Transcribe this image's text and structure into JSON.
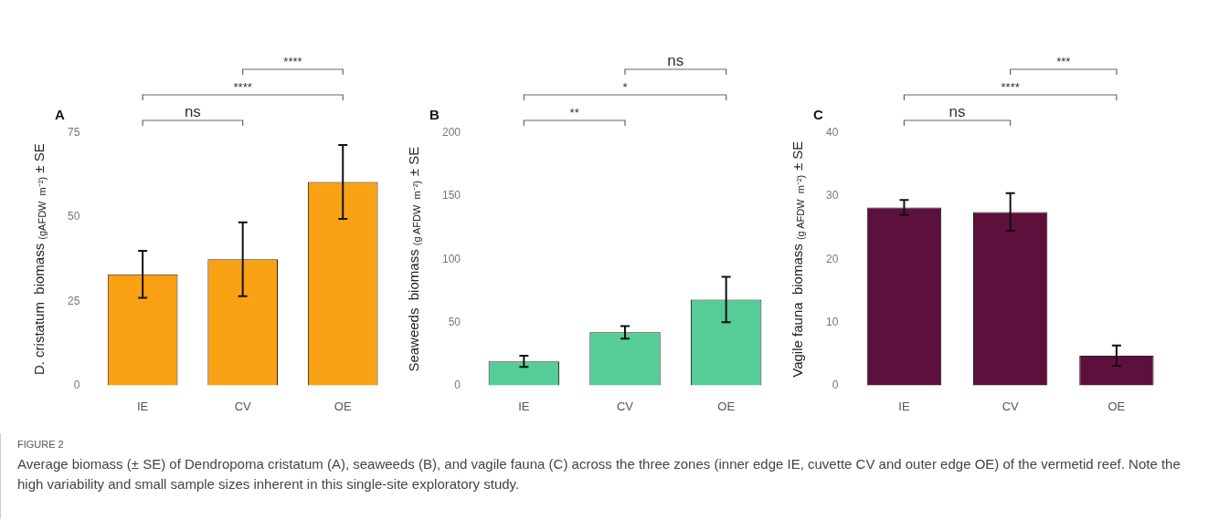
{
  "chart_data": [
    {
      "type": "bar",
      "title": "A",
      "ylabel": "D. cristatum  biomass $_{(gAFDW  m⁻²)}$ ± SE",
      "categories": [
        "IE",
        "CV",
        "OE"
      ],
      "series": [
        {
          "color": "#f8a213",
          "values": [
            33,
            37.5,
            60.5
          ],
          "errors": [
            7,
            11,
            11
          ]
        }
      ],
      "ylim": [
        0,
        75
      ],
      "yticks": [
        0,
        25,
        50,
        75
      ],
      "grid": false,
      "legend": false,
      "annotations": [
        "ns",
        "****",
        "****"
      ]
    },
    {
      "type": "bar",
      "title": "B",
      "ylabel": "Seaweeds  biomass $_{(g AFDW  m⁻²)}$ ± SE",
      "categories": [
        "IE",
        "CV",
        "OE"
      ],
      "series": [
        {
          "color": "#56cc96",
          "values": [
            19,
            42,
            68
          ],
          "errors": [
            4.5,
            5,
            18
          ]
        }
      ],
      "ylim": [
        0,
        200
      ],
      "yticks": [
        0,
        50,
        100,
        150,
        200
      ],
      "grid": false,
      "legend": false,
      "annotations": [
        "**",
        "*",
        "ns"
      ]
    },
    {
      "type": "bar",
      "title": "C",
      "ylabel": "Vagile fauna  biomass $_{(g AFDW  m⁻²)}$ ± SE",
      "categories": [
        "IE",
        "CV",
        "OE"
      ],
      "series": [
        {
          "color": "#5e103c",
          "values": [
            28.2,
            27.5,
            4.7
          ],
          "errors": [
            1.2,
            3,
            1.6
          ]
        }
      ],
      "ylim": [
        0,
        40
      ],
      "yticks": [
        0,
        10,
        20,
        30,
        40
      ],
      "grid": false,
      "legend": false,
      "annotations": [
        "ns",
        "****",
        "***"
      ]
    },
    {
      "type": "other",
      "title": "FIGURE 2",
      "annotations": [
        "Average biomass (± SE) of Dendropoma cristatum (A), seaweeds (B), and vagile fauna (C) across the three zones (inner edge IE, cuvette CV and outer edge OE) of the vermetid reef. Note the high variability and small sample sizes inherent in this single-site exploratory study."
      ]
    }
  ]
}
